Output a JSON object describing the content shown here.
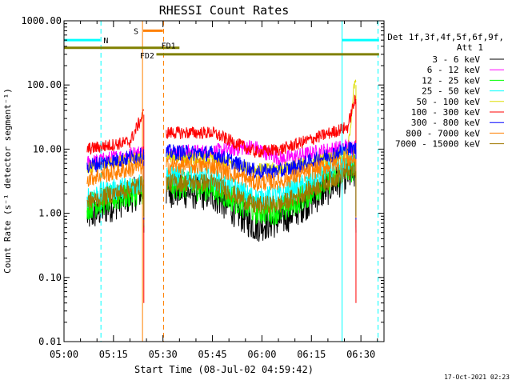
{
  "chart_data": {
    "type": "line",
    "title": "RHESSI Count Rates",
    "xlabel": "Start Time (08-Jul-02 04:59:42)",
    "ylabel": "Count Rate (s⁻¹ detector segment⁻¹)",
    "yscale": "log",
    "ylim": [
      0.01,
      1000
    ],
    "xlim_min": [
      0,
      97
    ],
    "x_ticks": [
      {
        "t": 0,
        "label": "05:00"
      },
      {
        "t": 15,
        "label": "05:15"
      },
      {
        "t": 30,
        "label": "05:30"
      },
      {
        "t": 45,
        "label": "05:45"
      },
      {
        "t": 60,
        "label": "06:00"
      },
      {
        "t": 75,
        "label": "06:15"
      },
      {
        "t": 90,
        "label": "06:30"
      }
    ],
    "y_ticks": [
      {
        "v": 1000,
        "label": "1000.00"
      },
      {
        "v": 100,
        "label": "100.00"
      },
      {
        "v": 10,
        "label": "10.00"
      },
      {
        "v": 1,
        "label": "1.00"
      },
      {
        "v": 0.1,
        "label": "0.10"
      },
      {
        "v": 0.01,
        "label": "0.01"
      }
    ],
    "legend_header": [
      "Det 1f,3f,4f,5f,6f,9f,",
      "Att 1"
    ],
    "legend_position": "right",
    "timestamp": "17-Oct-2021 02:23",
    "series": [
      {
        "name": "3 - 6 keV",
        "color": "#000000",
        "approx_values": [
          {
            "t": 7,
            "v": 0.9
          },
          {
            "t": 24,
            "v": 2.3
          },
          {
            "t": 31,
            "v": 2.3
          },
          {
            "t": 45,
            "v": 2.0
          },
          {
            "t": 58,
            "v": 0.65
          },
          {
            "t": 66,
            "v": 0.8
          },
          {
            "t": 86,
            "v": 4.0
          }
        ]
      },
      {
        "name": "6 - 12 keV",
        "color": "#ff00ff",
        "approx_values": [
          {
            "t": 7,
            "v": 6.0
          },
          {
            "t": 24,
            "v": 9.0
          },
          {
            "t": 31,
            "v": 9.0
          },
          {
            "t": 45,
            "v": 9.0
          },
          {
            "t": 57,
            "v": 11.0
          },
          {
            "t": 66,
            "v": 7.0
          },
          {
            "t": 86,
            "v": 11.0
          }
        ]
      },
      {
        "name": "12 - 25 keV",
        "color": "#00ff00",
        "approx_values": [
          {
            "t": 7,
            "v": 1.3
          },
          {
            "t": 24,
            "v": 2.3
          },
          {
            "t": 31,
            "v": 2.8
          },
          {
            "t": 45,
            "v": 2.5
          },
          {
            "t": 58,
            "v": 1.1
          },
          {
            "t": 66,
            "v": 1.1
          },
          {
            "t": 86,
            "v": 5.0
          }
        ]
      },
      {
        "name": "25 - 50 keV",
        "color": "#00ffff",
        "approx_values": [
          {
            "t": 7,
            "v": 1.8
          },
          {
            "t": 24,
            "v": 3.0
          },
          {
            "t": 31,
            "v": 3.8
          },
          {
            "t": 45,
            "v": 3.5
          },
          {
            "t": 58,
            "v": 1.7
          },
          {
            "t": 66,
            "v": 1.9
          },
          {
            "t": 86,
            "v": 6.0
          }
        ]
      },
      {
        "name": "50 - 100 keV",
        "color": "#dddd00",
        "approx_values": [
          {
            "t": 7,
            "v": 5.0
          },
          {
            "t": 24,
            "v": 7.5
          },
          {
            "t": 31,
            "v": 7.5
          },
          {
            "t": 45,
            "v": 7.0
          },
          {
            "t": 58,
            "v": 4.8
          },
          {
            "t": 66,
            "v": 5.0
          },
          {
            "t": 86,
            "v": 8.5
          },
          {
            "t": 88,
            "v": 100.0
          }
        ]
      },
      {
        "name": "100 - 300 keV",
        "color": "#ff0000",
        "approx_values": [
          {
            "t": 7,
            "v": 10.0
          },
          {
            "t": 20,
            "v": 13.0
          },
          {
            "t": 24,
            "v": 35.0
          },
          {
            "t": 31,
            "v": 18.0
          },
          {
            "t": 45,
            "v": 18.0
          },
          {
            "t": 58,
            "v": 9.0
          },
          {
            "t": 66,
            "v": 10.0
          },
          {
            "t": 86,
            "v": 22.0
          },
          {
            "t": 88,
            "v": 55.0
          }
        ]
      },
      {
        "name": "300 - 800 keV",
        "color": "#0000ff",
        "approx_values": [
          {
            "t": 7,
            "v": 5.5
          },
          {
            "t": 24,
            "v": 8.0
          },
          {
            "t": 31,
            "v": 9.0
          },
          {
            "t": 45,
            "v": 8.5
          },
          {
            "t": 58,
            "v": 4.5
          },
          {
            "t": 66,
            "v": 4.5
          },
          {
            "t": 86,
            "v": 10.0
          }
        ]
      },
      {
        "name": "800 - 7000 keV",
        "color": "#ff8000",
        "approx_values": [
          {
            "t": 7,
            "v": 3.5
          },
          {
            "t": 24,
            "v": 5.5
          },
          {
            "t": 31,
            "v": 5.5
          },
          {
            "t": 45,
            "v": 5.5
          },
          {
            "t": 58,
            "v": 3.0
          },
          {
            "t": 66,
            "v": 3.2
          },
          {
            "t": 86,
            "v": 7.0
          }
        ]
      },
      {
        "name": "7000 - 15000 keV",
        "color": "#a07800",
        "approx_values": [
          {
            "t": 7,
            "v": 1.5
          },
          {
            "t": 24,
            "v": 2.8
          },
          {
            "t": 31,
            "v": 3.0
          },
          {
            "t": 45,
            "v": 3.0
          },
          {
            "t": 58,
            "v": 1.3
          },
          {
            "t": 66,
            "v": 1.4
          },
          {
            "t": 86,
            "v": 4.5
          }
        ]
      }
    ],
    "annotations": [
      {
        "label": "N",
        "color": "#00ffff",
        "t_start": 0,
        "t_end": 11,
        "level": 500,
        "line_times": [
          0,
          11.2,
          84.3,
          95.2
        ]
      },
      {
        "label": "",
        "color": "#00ffff",
        "t_start": 84.3,
        "t_end": 95.5,
        "level": 500
      },
      {
        "label": "S",
        "color": "#ff8000",
        "t_start": 24,
        "t_end": 30,
        "level": 700,
        "line_times": [
          23.8,
          30.2
        ]
      },
      {
        "label": "FD1",
        "color": "#808000",
        "t_start": 0,
        "t_end": 35,
        "level": 380
      },
      {
        "label": "FD2",
        "color": "#808000",
        "t_start": 28,
        "t_end": 95.5,
        "level": 300
      }
    ]
  }
}
